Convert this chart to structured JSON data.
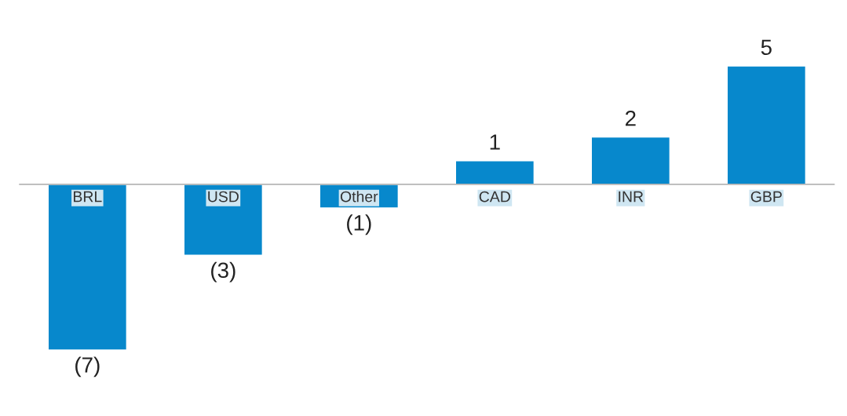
{
  "chart_data": {
    "type": "bar",
    "categories": [
      "BRL",
      "USD",
      "Other",
      "CAD",
      "INR",
      "GBP"
    ],
    "values": [
      -7,
      -3,
      -1,
      1,
      2,
      5
    ],
    "value_labels": [
      "(7)",
      "(3)",
      "(1)",
      "1",
      "2",
      "5"
    ],
    "color": "#0788cc",
    "grid": false,
    "legend": false
  }
}
